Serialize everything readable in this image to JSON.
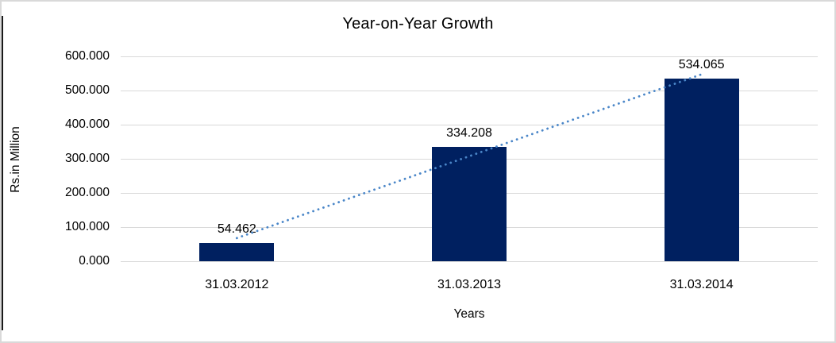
{
  "frame": {
    "background": "#ffffff",
    "border_color": "#d9d9d9",
    "left_edge_color": "#1a1a1a"
  },
  "chart_data": {
    "type": "bar",
    "title": "Year-on-Year Growth",
    "xlabel": "Years",
    "ylabel": "Rs.in Million",
    "categories": [
      "31.03.2012",
      "31.03.2013",
      "31.03.2014"
    ],
    "values": [
      54.462,
      334.208,
      534.065
    ],
    "data_labels": [
      "54.462",
      "334.208",
      "534.065"
    ],
    "ylim": [
      0,
      600
    ],
    "ytick_interval": 100,
    "ytick_labels": [
      "0.000",
      "100.000",
      "200.000",
      "300.000",
      "400.000",
      "500.000",
      "600.000"
    ],
    "grid": true,
    "legend_position": "none",
    "trendline": {
      "type": "linear",
      "style": "dotted"
    },
    "colors": {
      "bar": "#002060",
      "trendline": "#4a86c8",
      "gridline": "#d9d9d9",
      "text": "#000000"
    }
  }
}
